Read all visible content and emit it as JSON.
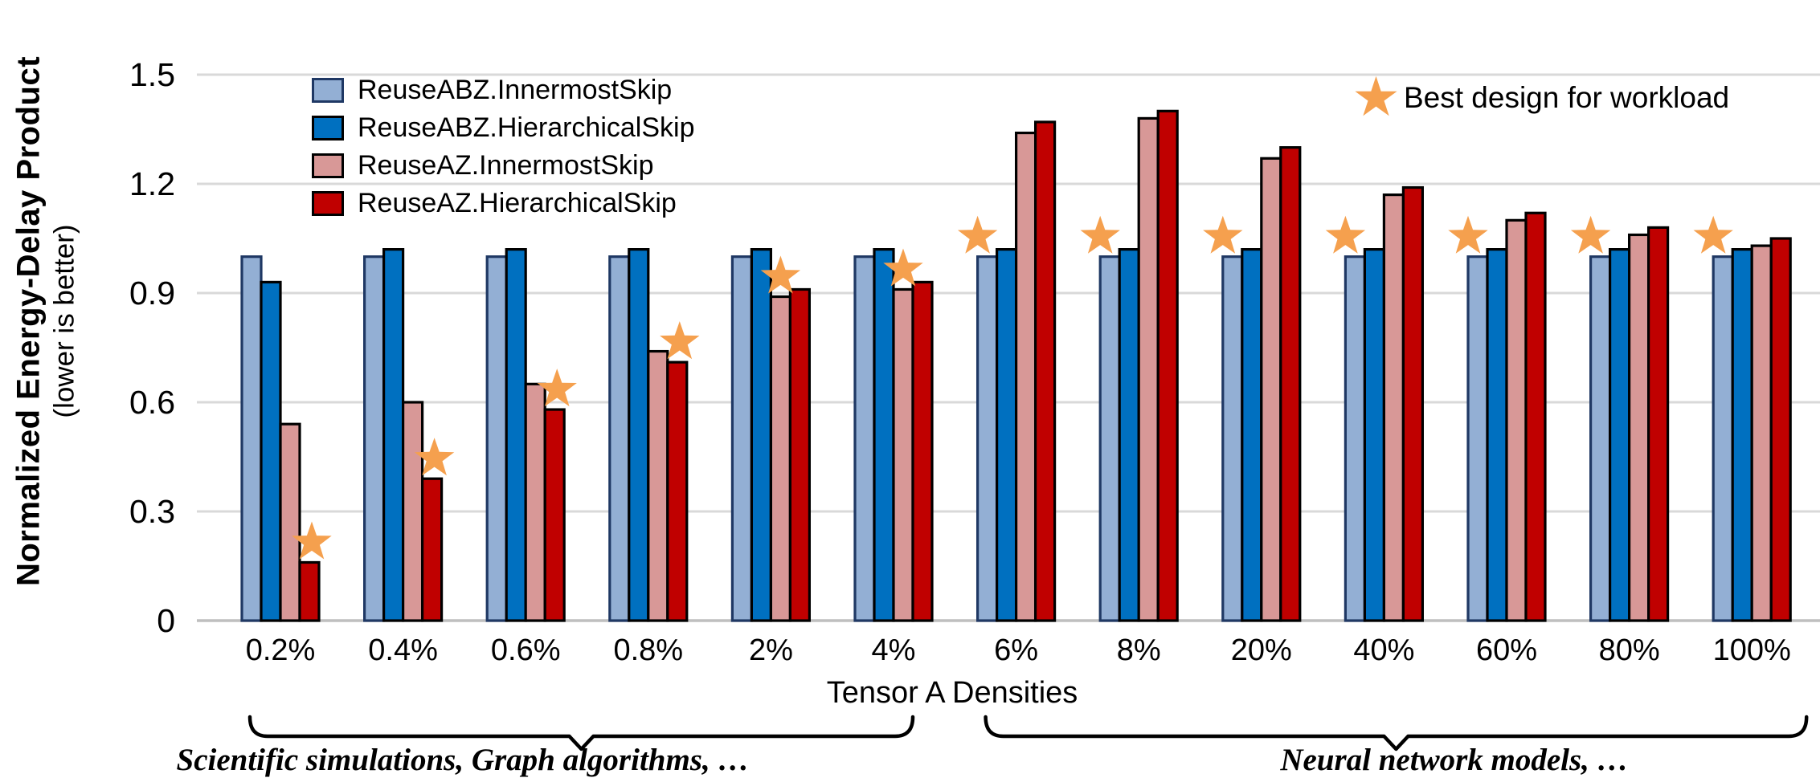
{
  "chart_data": {
    "type": "bar",
    "title": "",
    "ylabel": "Normalized Energy-Delay Product",
    "ylabel_sub": "(lower is better)",
    "xlabel": "Tensor A Densities",
    "ylim": [
      0,
      1.5
    ],
    "ytick_step": 0.3,
    "ytick_labels": [
      "0",
      "0.3",
      "0.6",
      "0.9",
      "1.2",
      "1.5"
    ],
    "grid": true,
    "legend_position": "top-left",
    "categories": [
      "0.2%",
      "0.4%",
      "0.6%",
      "0.8%",
      "2%",
      "4%",
      "6%",
      "8%",
      "20%",
      "40%",
      "60%",
      "80%",
      "100%"
    ],
    "series": [
      {
        "name": "ReuseABZ.InnermostSkip",
        "color": "#93AFD4",
        "border": "#1F3864",
        "values": [
          1.0,
          1.0,
          1.0,
          1.0,
          1.0,
          1.0,
          1.0,
          1.0,
          1.0,
          1.0,
          1.0,
          1.0,
          1.0
        ]
      },
      {
        "name": "ReuseABZ.HierarchicalSkip",
        "color": "#0070C0",
        "border": "#000000",
        "values": [
          0.93,
          1.02,
          1.02,
          1.02,
          1.02,
          1.02,
          1.02,
          1.02,
          1.02,
          1.02,
          1.02,
          1.02,
          1.02
        ]
      },
      {
        "name": "ReuseAZ.InnermostSkip",
        "color": "#D89897",
        "border": "#000000",
        "values": [
          0.54,
          0.6,
          0.65,
          0.74,
          0.89,
          0.91,
          1.34,
          1.38,
          1.27,
          1.17,
          1.1,
          1.06,
          1.03
        ]
      },
      {
        "name": "ReuseAZ.HierarchicalSkip",
        "color": "#C00000",
        "border": "#000000",
        "values": [
          0.16,
          0.39,
          0.58,
          0.71,
          0.91,
          0.93,
          1.37,
          1.4,
          1.3,
          1.19,
          1.12,
          1.08,
          1.05
        ]
      }
    ],
    "best_design_star": {
      "label": "Best design for workload",
      "color": "#F5A04E",
      "series_index_per_category": [
        3,
        3,
        3,
        3,
        2,
        2,
        0,
        0,
        0,
        0,
        0,
        0,
        0
      ]
    },
    "annotations": [
      {
        "text": "Scientific simulations, Graph algorithms, …",
        "from_category": "0.2%",
        "to_category": "4%"
      },
      {
        "text": "Neural network models, …",
        "from_category": "6%",
        "to_category": "100%"
      }
    ]
  }
}
